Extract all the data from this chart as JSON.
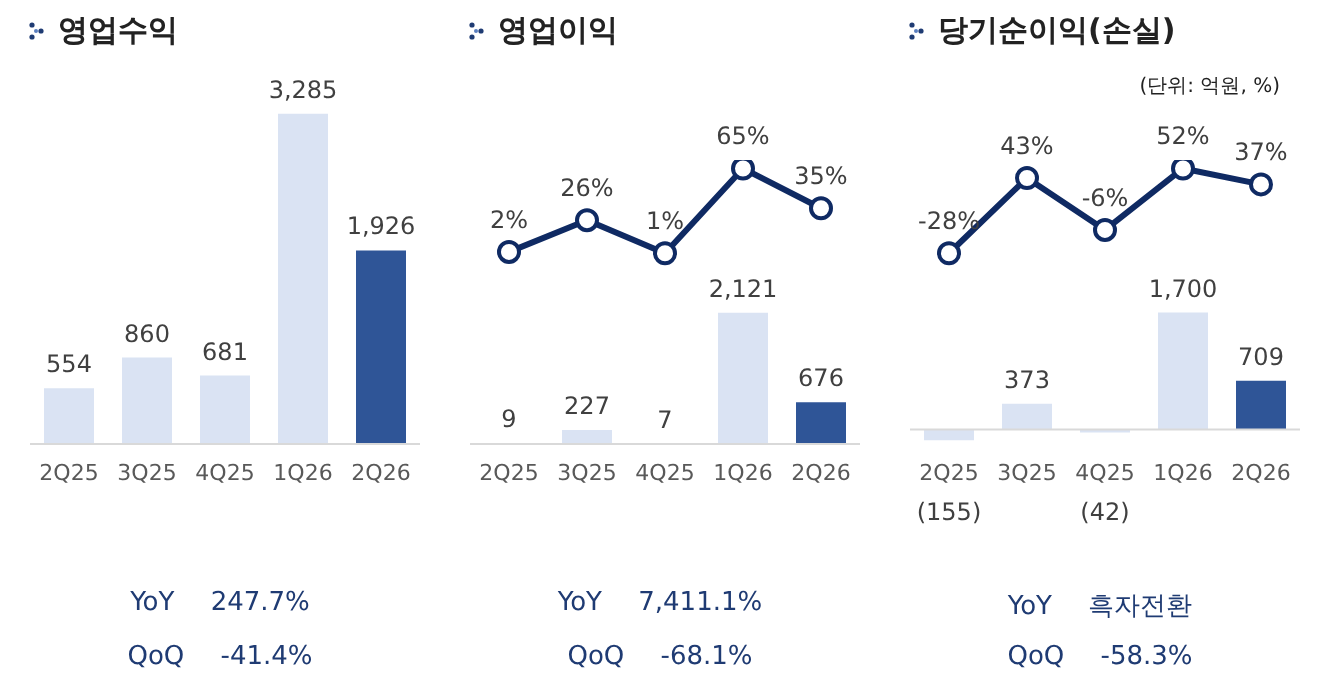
{
  "chart_data": [
    {
      "type": "bar",
      "title": "영업수익",
      "categories": [
        "2Q25",
        "3Q25",
        "4Q25",
        "1Q26",
        "2Q26"
      ],
      "series": [
        {
          "colors": [
            "#dae3f3",
            "#dae3f3",
            "#dae3f3",
            "#dae3f3",
            "#2f5597"
          ],
          "values": [
            554,
            860,
            681,
            3285,
            1926
          ],
          "value_labels": [
            "554",
            "860",
            "681",
            "3,285",
            "1,926"
          ]
        }
      ],
      "tick_labels": "x",
      "annotations": [
        "YoY 247.7%",
        "QoQ -41.4%"
      ]
    },
    {
      "type": "line",
      "title": "영업이익",
      "categories": [
        null,
        null,
        null,
        null,
        null
      ],
      "series": [
        {
          "color": "#0f2a63",
          "values": [
            2,
            26,
            1,
            65,
            35
          ],
          "value_labels": [
            "2%",
            "26%",
            "1%",
            "65%",
            "35%"
          ]
        }
      ],
      "marker": "circle",
      "tick_labels": false
    },
    {
      "type": "bar",
      "categories": [
        "2Q25",
        "3Q25",
        "4Q25",
        "1Q26",
        "2Q26"
      ],
      "series": [
        {
          "colors": [
            "#dae3f3",
            "#dae3f3",
            "#dae3f3",
            "#dae3f3",
            "#2f5597"
          ],
          "values": [
            9,
            227,
            7,
            2121,
            676
          ],
          "value_labels": [
            "9",
            "227",
            "7",
            "2,121",
            "676"
          ]
        }
      ],
      "tick_labels": "x",
      "annotations": [
        "YoY 7,411.1%",
        "QoQ -68.1%"
      ]
    },
    {
      "type": "line",
      "title": "당기순이익(손실)",
      "categories": [
        null,
        null,
        null,
        null,
        null
      ],
      "series": [
        {
          "color": "#0f2a63",
          "values": [
            -28,
            43,
            -6,
            52,
            37
          ],
          "value_labels": [
            "-28%",
            "43%",
            "-6%",
            "52%",
            "37%"
          ]
        }
      ],
      "marker": "circle",
      "tick_labels": false,
      "annotations": [
        "(단위: 억원, %)"
      ]
    },
    {
      "type": "bar",
      "categories": [
        "2Q25",
        "3Q25",
        "4Q25",
        "1Q26",
        "2Q26"
      ],
      "series": [
        {
          "colors": [
            "#dae3f3",
            "#dae3f3",
            "#dae3f3",
            "#dae3f3",
            "#2f5597"
          ],
          "values": [
            -155,
            373,
            -42,
            1700,
            709
          ],
          "value_labels": [
            "(155)",
            "373",
            "(42)",
            "1,700",
            "709"
          ]
        }
      ],
      "tick_labels": "x",
      "annotations": [
        "YoY 흑자전환",
        "QoQ -58.3%"
      ]
    }
  ]
}
